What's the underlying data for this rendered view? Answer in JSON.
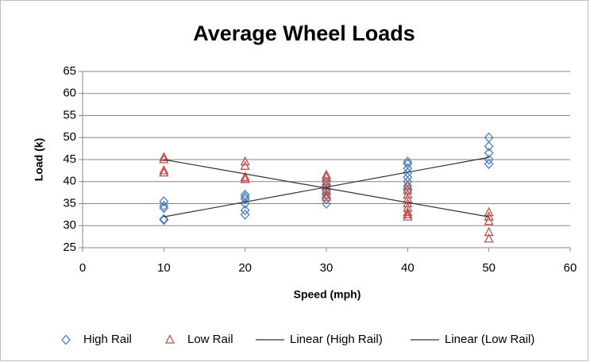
{
  "chart_data": {
    "type": "scatter",
    "title": "Average Wheel Loads",
    "x_label": "Speed (mph)",
    "y_label": "Load (k)",
    "xlim": [
      0,
      60
    ],
    "xticks": [
      0,
      10,
      20,
      30,
      40,
      50,
      60
    ],
    "ylim": [
      25,
      65
    ],
    "yticks": [
      25,
      30,
      35,
      40,
      45,
      50,
      55,
      60,
      65
    ],
    "grid": true,
    "legend": "bottom",
    "series": [
      {
        "name": "High Rail",
        "type": "scatter",
        "marker": "diamond",
        "color": "#4a7ebb",
        "x": [
          10,
          10,
          10,
          10,
          10,
          20,
          20,
          20,
          20,
          20,
          20,
          30,
          30,
          30,
          30,
          30,
          30,
          40,
          40,
          40,
          40,
          40,
          40,
          40,
          40,
          50,
          50,
          50,
          50,
          50
        ],
        "values": [
          35.5,
          34.5,
          34,
          31.5,
          31.3,
          37,
          36.5,
          36,
          35,
          33.5,
          32.5,
          40,
          39,
          38,
          37,
          36,
          35,
          44.5,
          44,
          43,
          42,
          41,
          40,
          39,
          38,
          50,
          48,
          46.5,
          45,
          44
        ]
      },
      {
        "name": "Low Rail",
        "type": "scatter",
        "marker": "triangle",
        "color": "#c0504d",
        "x": [
          10,
          10,
          10,
          10,
          20,
          20,
          20,
          20,
          30,
          30,
          30,
          30,
          30,
          30,
          30,
          40,
          40,
          40,
          40,
          40,
          40,
          40,
          40,
          40,
          50,
          50,
          50,
          50,
          50
        ],
        "values": [
          45.5,
          45,
          42.5,
          42,
          44.5,
          43.5,
          41,
          40.5,
          41.5,
          41,
          40,
          39,
          38,
          37,
          36.5,
          39,
          38,
          37,
          36,
          35,
          34,
          33,
          32.5,
          32,
          33,
          32,
          31,
          28.5,
          27
        ]
      },
      {
        "name": "Linear (High Rail)",
        "type": "line",
        "color": "#333333",
        "x": [
          10,
          50
        ],
        "values": [
          32,
          45.5
        ]
      },
      {
        "name": "Linear (Low Rail)",
        "type": "line",
        "color": "#333333",
        "x": [
          10,
          50
        ],
        "values": [
          45,
          32
        ]
      }
    ]
  }
}
